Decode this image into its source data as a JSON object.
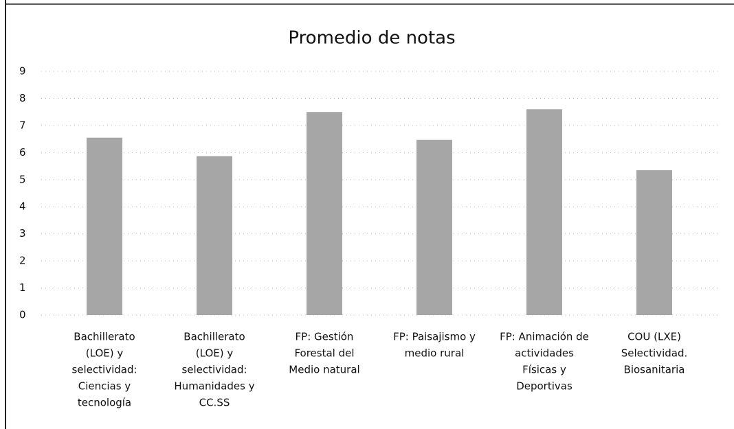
{
  "chart_data": {
    "type": "bar",
    "title": "Promedio de notas",
    "categories": [
      [
        "Bachillerato",
        "(LOE) y",
        "selectividad:",
        "Ciencias y",
        "tecnología"
      ],
      [
        "Bachillerato",
        "(LOE) y",
        "selectividad:",
        "Humanidades y",
        "CC.SS"
      ],
      [
        "FP: Gestión",
        "Forestal del",
        "Medio natural"
      ],
      [
        "FP: Paisajismo y",
        "medio rural"
      ],
      [
        "FP: Animación de",
        "actividades",
        "Físicas y",
        "Deportivas"
      ],
      [
        "COU (LXE)",
        "Selectividad.",
        "Biosanitaria"
      ]
    ],
    "values": [
      6.55,
      5.87,
      7.5,
      6.47,
      7.6,
      5.35
    ],
    "color": "#a6a6a6",
    "ylim": [
      0,
      9
    ],
    "yticks": [
      0,
      1,
      2,
      3,
      4,
      5,
      6,
      7,
      8,
      9
    ],
    "grid": true
  }
}
